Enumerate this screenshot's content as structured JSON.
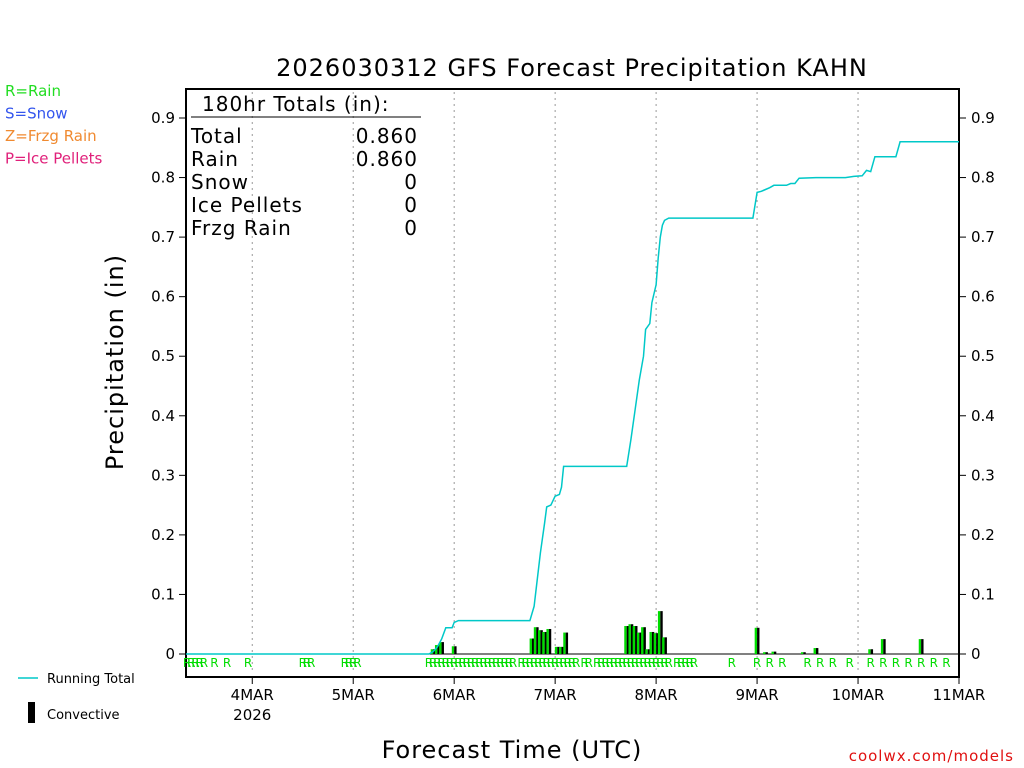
{
  "chart_data": {
    "type": "line",
    "title": "2026030312 GFS Forecast Precipitation KAHN",
    "xlabel": "Forecast Time (UTC)",
    "ylabel": "Precipitation (in)",
    "ylim": [
      0,
      0.93
    ],
    "yticks": [
      0,
      0.1,
      0.2,
      0.3,
      0.4,
      0.5,
      0.6,
      0.7,
      0.8,
      0.9
    ],
    "ytick_labels": [
      "0",
      "0.1",
      "0.2",
      "0.3",
      "0.4",
      "0.5",
      "0.6",
      "0.7",
      "0.8",
      "0.9"
    ],
    "x_unit": "forecast hours from init",
    "xlim": [
      -3.75,
      180
    ],
    "xticks": [
      {
        "hour": 12,
        "label": "4MAR",
        "sublabel": "2026"
      },
      {
        "hour": 36,
        "label": "5MAR",
        "sublabel": ""
      },
      {
        "hour": 60,
        "label": "6MAR",
        "sublabel": ""
      },
      {
        "hour": 84,
        "label": "7MAR",
        "sublabel": ""
      },
      {
        "hour": 108,
        "label": "8MAR",
        "sublabel": ""
      },
      {
        "hour": 132,
        "label": "9MAR",
        "sublabel": ""
      },
      {
        "hour": 156,
        "label": "10MAR",
        "sublabel": ""
      },
      {
        "hour": 180,
        "label": "11MAR",
        "sublabel": ""
      }
    ],
    "series": [
      {
        "name": "Running Total",
        "color": "#00c8c8",
        "points": [
          [
            -3.75,
            0
          ],
          [
            54,
            0
          ],
          [
            55,
            0.004
          ],
          [
            56,
            0.012
          ],
          [
            57,
            0.025
          ],
          [
            58,
            0.044
          ],
          [
            59.5,
            0.044
          ],
          [
            60,
            0.053
          ],
          [
            61,
            0.056
          ],
          [
            78,
            0.056
          ],
          [
            79,
            0.08
          ],
          [
            79.5,
            0.11
          ],
          [
            80.5,
            0.17
          ],
          [
            81.5,
            0.22
          ],
          [
            82,
            0.247
          ],
          [
            83,
            0.25
          ],
          [
            84,
            0.265
          ],
          [
            85,
            0.268
          ],
          [
            85.5,
            0.28
          ],
          [
            86,
            0.315
          ],
          [
            101,
            0.315
          ],
          [
            102,
            0.36
          ],
          [
            103,
            0.41
          ],
          [
            104,
            0.46
          ],
          [
            105,
            0.5
          ],
          [
            105.5,
            0.545
          ],
          [
            106.5,
            0.555
          ],
          [
            107,
            0.59
          ],
          [
            108,
            0.62
          ],
          [
            108.5,
            0.665
          ],
          [
            109,
            0.7
          ],
          [
            109.5,
            0.72
          ],
          [
            110,
            0.728
          ],
          [
            111,
            0.732
          ],
          [
            131,
            0.732
          ],
          [
            132,
            0.775
          ],
          [
            133,
            0.777
          ],
          [
            134,
            0.78
          ],
          [
            135,
            0.783
          ],
          [
            136,
            0.787
          ],
          [
            139,
            0.787
          ],
          [
            140,
            0.79
          ],
          [
            141,
            0.79
          ],
          [
            142,
            0.799
          ],
          [
            146,
            0.8
          ],
          [
            153,
            0.8
          ],
          [
            155,
            0.802
          ],
          [
            157,
            0.803
          ],
          [
            158,
            0.812
          ],
          [
            159,
            0.81
          ],
          [
            160,
            0.835
          ],
          [
            165,
            0.835
          ],
          [
            166,
            0.86
          ],
          [
            180,
            0.86
          ]
        ]
      },
      {
        "name": "Convective",
        "color": "#000000",
        "bars": [
          [
            55,
            0.008
          ],
          [
            56,
            0.015
          ],
          [
            57,
            0.02
          ],
          [
            60,
            0.013
          ],
          [
            78.5,
            0.026
          ],
          [
            79.5,
            0.045
          ],
          [
            80.5,
            0.04
          ],
          [
            81.5,
            0.037
          ],
          [
            82.5,
            0.042
          ],
          [
            84.5,
            0.012
          ],
          [
            85.5,
            0.012
          ],
          [
            86.5,
            0.036
          ],
          [
            101,
            0.047
          ],
          [
            102,
            0.05
          ],
          [
            103,
            0.047
          ],
          [
            104,
            0.036
          ],
          [
            105,
            0.045
          ],
          [
            106,
            0.008
          ],
          [
            107,
            0.037
          ],
          [
            108,
            0.035
          ],
          [
            109,
            0.072
          ],
          [
            110,
            0.028
          ],
          [
            132,
            0.044
          ],
          [
            134,
            0.003
          ],
          [
            136,
            0.004
          ],
          [
            143,
            0.003
          ],
          [
            146,
            0.01
          ],
          [
            159,
            0.008
          ],
          [
            162,
            0.025
          ],
          [
            171,
            0.025
          ]
        ]
      }
    ],
    "precip_type_markers": {
      "letter": "R",
      "color": "#00dd00",
      "hours": [
        -3.5,
        -2.5,
        -1.5,
        -0.5,
        0.5,
        3,
        6,
        11,
        24,
        25,
        26,
        34,
        35,
        36,
        37,
        54,
        55,
        56,
        57,
        58,
        59,
        60,
        61,
        62,
        63,
        64,
        65,
        66,
        67,
        68,
        69,
        70,
        71,
        72,
        73,
        74,
        76,
        77,
        78,
        79,
        80,
        81,
        82,
        83,
        84,
        85,
        86,
        87,
        88,
        89,
        91,
        92,
        94,
        95,
        96,
        97,
        98,
        99,
        100,
        101,
        102,
        103,
        104,
        105,
        106,
        107,
        108,
        109,
        110,
        111,
        113,
        114,
        115,
        116,
        117,
        126,
        132,
        135,
        138,
        144,
        147,
        150,
        154,
        159,
        162,
        165,
        168,
        171,
        174,
        177
      ]
    },
    "totals_box": {
      "header": "180hr Totals (in):",
      "rows": [
        {
          "label": "Total",
          "value": "0.860"
        },
        {
          "label": "Rain",
          "value": "0.860"
        },
        {
          "label": "Snow",
          "value": "0"
        },
        {
          "label": "Ice Pellets",
          "value": "0"
        },
        {
          "label": "Frzg Rain",
          "value": "0"
        }
      ]
    },
    "type_legend": [
      {
        "text": "R=Rain",
        "color": "#22dd22"
      },
      {
        "text": "S=Snow",
        "color": "#3355ee"
      },
      {
        "text": "Z=Frzg Rain",
        "color": "#f08a30"
      },
      {
        "text": "P=Ice Pellets",
        "color": "#e0207a"
      }
    ],
    "series_legend": [
      {
        "text": "Running Total",
        "color": "#00c8c8"
      },
      {
        "text": "Convective",
        "color": "#000000"
      }
    ],
    "credit": {
      "text": "coolwx.com/models",
      "color": "#e01010"
    }
  }
}
